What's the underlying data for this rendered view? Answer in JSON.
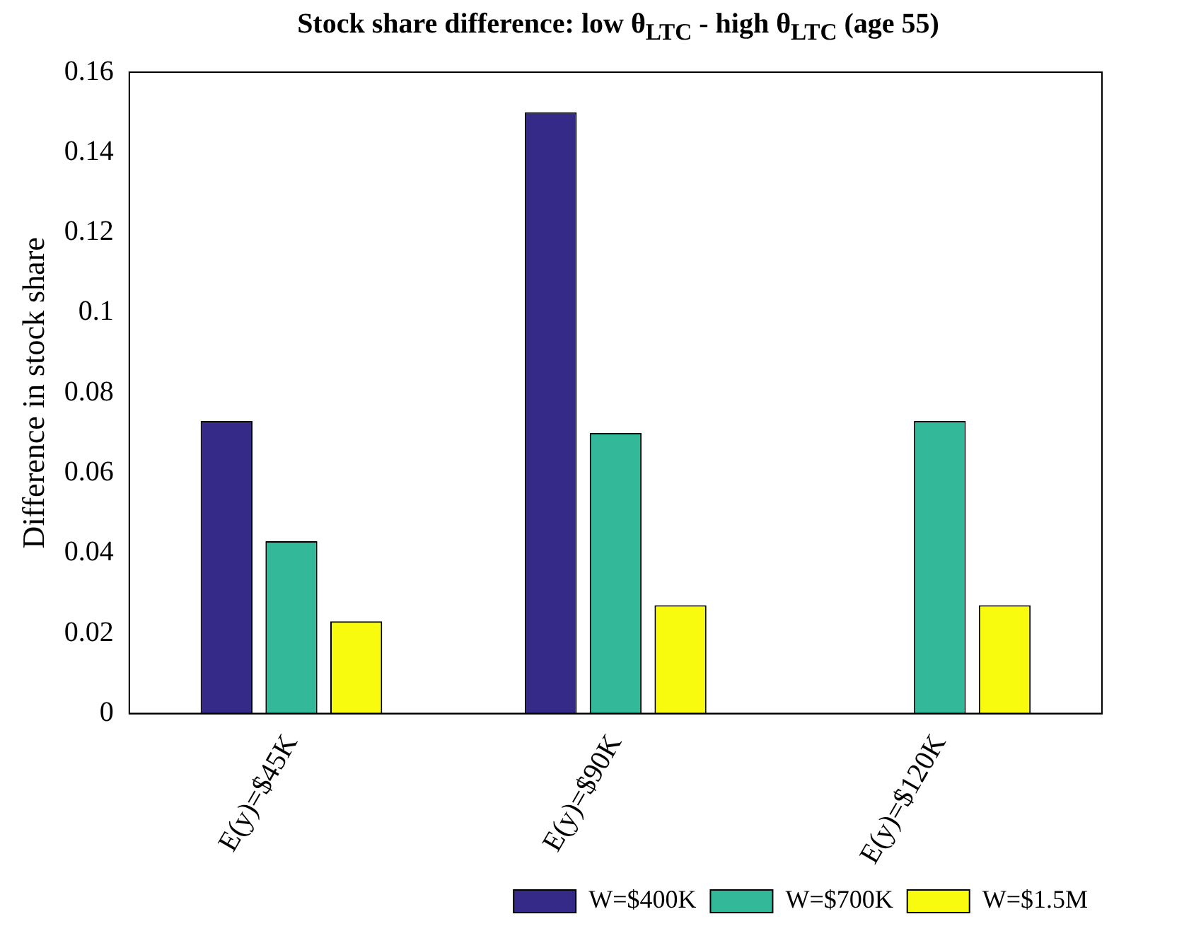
{
  "chart_data": {
    "type": "bar",
    "title": "Stock share difference: low θ$_{LTC}$ - high θ$_{LTC}$ (age 55)",
    "ylabel": "Difference in stock share",
    "categories": [
      "E(y)=$45K",
      "E(y)=$90K",
      "E(y)=$120K"
    ],
    "series": [
      {
        "name": "W=$400K",
        "color": "#352a87",
        "values": [
          0.073,
          0.15,
          0
        ]
      },
      {
        "name": "W=$700K",
        "color": "#33b89a",
        "values": [
          0.043,
          0.07,
          0.073
        ]
      },
      {
        "name": "W=$1.5M",
        "color": "#f9fb0e",
        "values": [
          0.023,
          0.027,
          0.027
        ]
      }
    ],
    "ylim": [
      0,
      0.16
    ],
    "yticks": [
      0,
      0.02,
      0.04,
      0.06,
      0.08,
      0.1,
      0.12,
      0.14,
      0.16
    ],
    "grid": false,
    "legend": "bottom right"
  }
}
